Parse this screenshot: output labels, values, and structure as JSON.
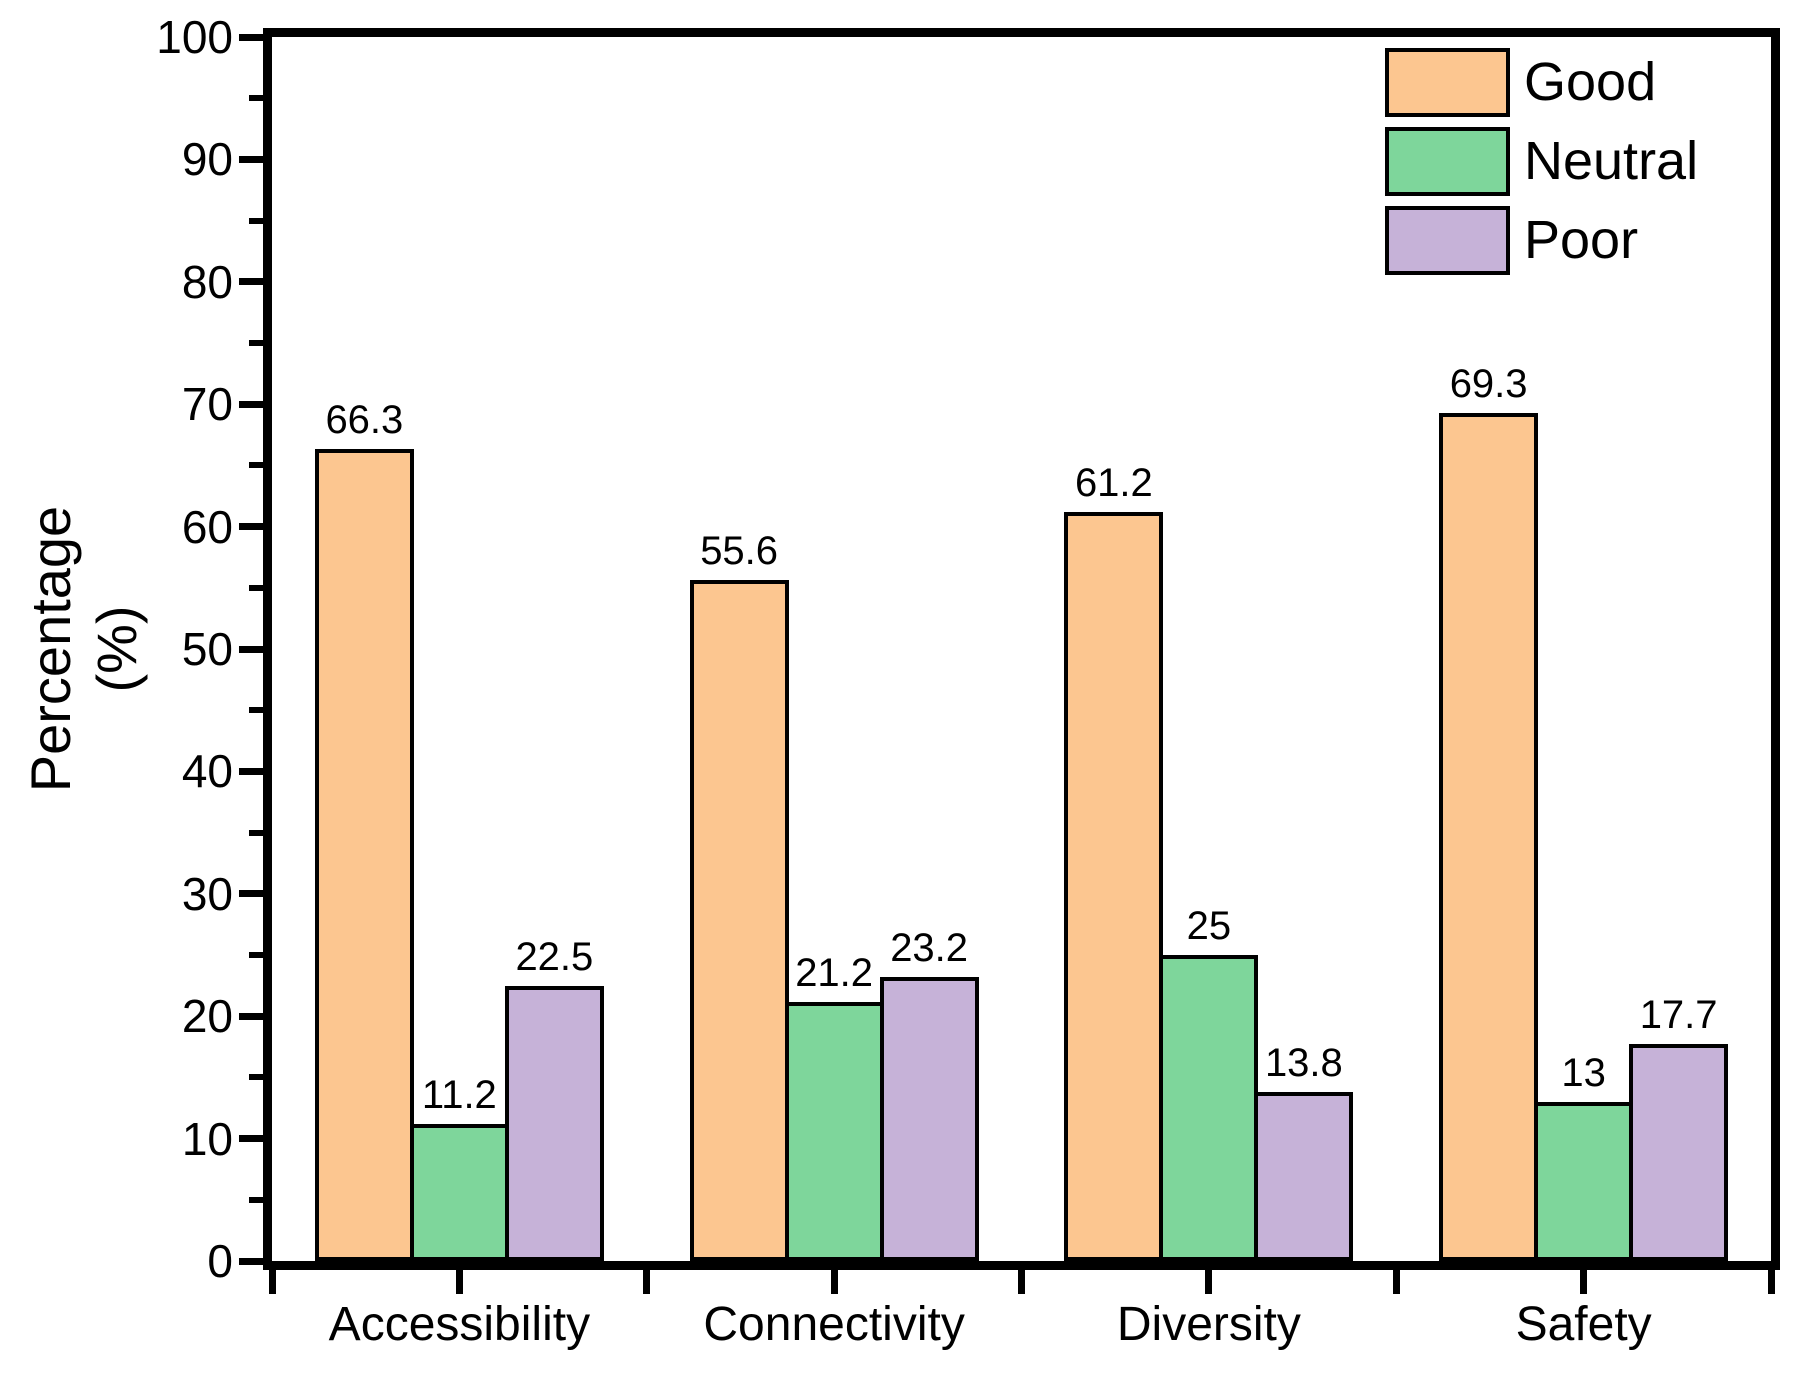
{
  "figure": {
    "background": "#ffffff",
    "text_color": "#000000",
    "axis_color": "#000000"
  },
  "chart_data": {
    "type": "bar",
    "title": "",
    "categories": [
      "Accessibility",
      "Connectivity",
      "Diversity",
      "Safety"
    ],
    "series": [
      {
        "name": "Good",
        "color": "#FCC690",
        "values": [
          66.3,
          55.6,
          61.2,
          69.3
        ],
        "labels": [
          "66.3",
          "55.6",
          "61.2",
          "69.3"
        ]
      },
      {
        "name": "Neutral",
        "color": "#7ED69B",
        "values": [
          11.2,
          21.2,
          25,
          13
        ],
        "labels": [
          "11.2",
          "21.2",
          "25",
          "13"
        ]
      },
      {
        "name": "Poor",
        "color": "#C6B2D8",
        "values": [
          22.5,
          23.2,
          13.8,
          17.7
        ],
        "labels": [
          "22.5",
          "23.2",
          "13.8",
          "17.7"
        ]
      }
    ],
    "ylabel_lines": [
      "Percentage",
      "(%)"
    ],
    "xlabel": "",
    "ylim": [
      0,
      100
    ],
    "y_major_step": 10,
    "y_minor_step": 5,
    "y_tick_labels": [
      "0",
      "10",
      "20",
      "30",
      "40",
      "50",
      "60",
      "70",
      "80",
      "90",
      "100"
    ],
    "grid": false,
    "bar_edge_color": "#000000",
    "legend": {
      "position": "top-right-inside",
      "entries": [
        "Good",
        "Neutral",
        "Poor"
      ]
    }
  }
}
